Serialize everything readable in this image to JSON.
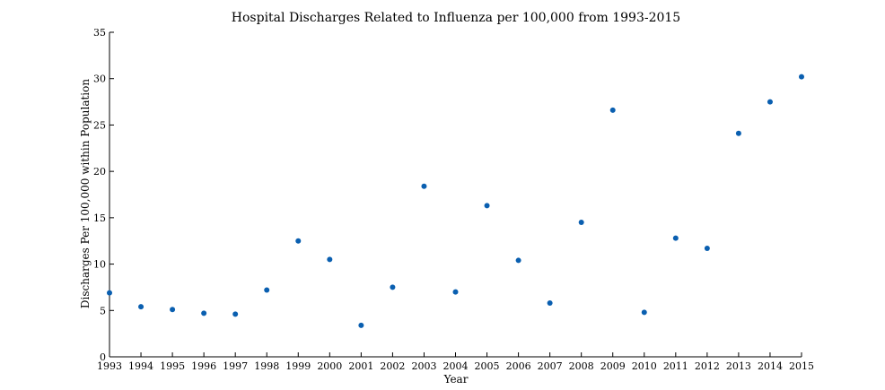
{
  "chart_data": {
    "type": "scatter",
    "title": "Hospital Discharges Related to Influenza per 100,000 from 1993-2015",
    "xlabel": "Year",
    "ylabel": "Discharges Per 100,000 within Population",
    "xlim": [
      1993,
      2015
    ],
    "ylim": [
      0,
      35
    ],
    "x_ticks": [
      1993,
      1994,
      1995,
      1996,
      1997,
      1998,
      1999,
      2000,
      2001,
      2002,
      2003,
      2004,
      2005,
      2006,
      2007,
      2008,
      2009,
      2010,
      2011,
      2012,
      2013,
      2014,
      2015
    ],
    "y_ticks": [
      0,
      5,
      10,
      15,
      20,
      25,
      30,
      35
    ],
    "grid": false,
    "point_color": "#0a5fb0",
    "series": [
      {
        "x": [
          1993,
          1994,
          1995,
          1996,
          1997,
          1998,
          1999,
          2000,
          2001,
          2002,
          2003,
          2004,
          2005,
          2006,
          2007,
          2008,
          2009,
          2010,
          2011,
          2012,
          2013,
          2014,
          2015
        ],
        "y": [
          6.9,
          5.4,
          5.1,
          4.7,
          4.6,
          7.2,
          12.5,
          10.5,
          3.4,
          7.5,
          18.4,
          7.0,
          16.3,
          10.4,
          5.8,
          14.5,
          26.6,
          4.8,
          12.8,
          11.7,
          24.1,
          27.5,
          30.2
        ]
      }
    ]
  }
}
